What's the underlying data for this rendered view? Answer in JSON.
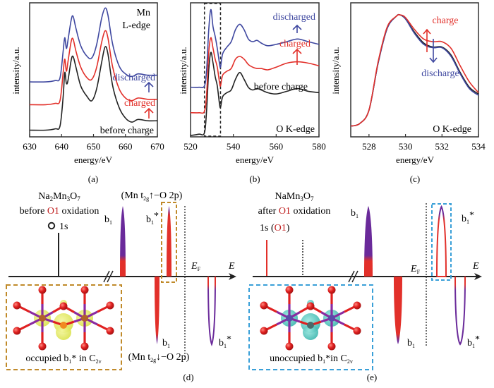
{
  "colors": {
    "black": "#222222",
    "red": "#e2302a",
    "blue": "#3f48a0",
    "purple": "#6a2a9a",
    "gold": "#c08a2a",
    "cyan": "#3aa0d8",
    "yellow_orbital": "#e2ea5a",
    "teal_orbital": "#48c8c0",
    "mn_atom": "#8a2aa0",
    "o_atom": "#e02020"
  },
  "chart_data": [
    {
      "id": "a",
      "type": "line",
      "panel_label": "(a)",
      "title": "Mn L-edge",
      "annotation_lines": [
        "Mn",
        "L-edge"
      ],
      "xlabel": "energy/eV",
      "ylabel": "intensity/a.u.",
      "xlim": [
        630,
        670
      ],
      "ylim": [
        0,
        1
      ],
      "xticks": [
        630,
        640,
        650,
        660,
        670
      ],
      "grid": false,
      "series": [
        {
          "name": "before charge",
          "color": "#222222",
          "x": [
            630,
            635,
            638,
            639.5,
            640.5,
            641,
            641.5,
            642,
            643,
            643.6,
            644.5,
            646,
            648,
            649.5,
            651,
            652.5,
            653.6,
            654.5,
            656,
            658,
            660,
            662,
            664,
            667,
            670
          ],
          "y": [
            0.05,
            0.05,
            0.06,
            0.08,
            0.3,
            0.48,
            0.4,
            0.42,
            0.57,
            0.6,
            0.52,
            0.38,
            0.3,
            0.27,
            0.36,
            0.55,
            0.67,
            0.62,
            0.38,
            0.22,
            0.14,
            0.11,
            0.13,
            0.12,
            0.12
          ]
        },
        {
          "name": "charged",
          "color": "#e2302a",
          "x": [
            630,
            635,
            638,
            639.5,
            640.5,
            641,
            641.5,
            642,
            643,
            643.6,
            644.5,
            646,
            648,
            649.5,
            651,
            652.5,
            653.6,
            654.5,
            656,
            658,
            660,
            662,
            664,
            667,
            670
          ],
          "y": [
            0.24,
            0.24,
            0.25,
            0.27,
            0.48,
            0.58,
            0.49,
            0.56,
            0.71,
            0.73,
            0.64,
            0.52,
            0.44,
            0.43,
            0.52,
            0.7,
            0.79,
            0.74,
            0.52,
            0.36,
            0.29,
            0.27,
            0.29,
            0.28,
            0.28
          ]
        },
        {
          "name": "discharged",
          "color": "#3f48a0",
          "x": [
            630,
            635,
            638,
            639.5,
            640.5,
            641,
            641.5,
            642,
            643,
            643.6,
            644.5,
            646,
            648,
            649.5,
            651,
            652.5,
            653.6,
            654.5,
            656,
            658,
            660,
            662,
            664,
            667,
            670
          ],
          "y": [
            0.41,
            0.41,
            0.42,
            0.44,
            0.64,
            0.74,
            0.66,
            0.72,
            0.87,
            0.9,
            0.81,
            0.68,
            0.6,
            0.59,
            0.69,
            0.88,
            0.96,
            0.91,
            0.69,
            0.53,
            0.47,
            0.45,
            0.47,
            0.46,
            0.46
          ]
        }
      ],
      "labels": [
        {
          "text": "discharged",
          "color": "#3f48a0"
        },
        {
          "text": "charged",
          "color": "#e2302a"
        },
        {
          "text": "before charge",
          "color": "#222222"
        }
      ]
    },
    {
      "id": "b",
      "type": "line",
      "panel_label": "(b)",
      "title": "O K-edge",
      "xlabel": "energy/eV",
      "ylabel": "intensity/a.u.",
      "xlim": [
        520,
        580
      ],
      "ylim": [
        0,
        1
      ],
      "xticks": [
        520,
        540,
        560,
        580
      ],
      "grid": false,
      "highlight_range": [
        526.5,
        534
      ],
      "series": [
        {
          "name": "before charge",
          "color": "#222222",
          "x": [
            520,
            524,
            526.5,
            527.5,
            528.5,
            529.5,
            530.5,
            531.5,
            532.5,
            533.5,
            534,
            535,
            537,
            539,
            541,
            543,
            545,
            547,
            549,
            551,
            553,
            556,
            560,
            565,
            570,
            575,
            580
          ],
          "y": [
            0.01,
            0.02,
            0.03,
            0.2,
            0.5,
            0.63,
            0.55,
            0.45,
            0.38,
            0.25,
            0.22,
            0.3,
            0.33,
            0.35,
            0.43,
            0.48,
            0.43,
            0.37,
            0.35,
            0.36,
            0.35,
            0.33,
            0.32,
            0.34,
            0.36,
            0.34,
            0.33
          ]
        },
        {
          "name": "charged",
          "color": "#e2302a",
          "x": [
            520,
            524,
            526.5,
            527.5,
            528.5,
            529.5,
            530.5,
            531.5,
            532.5,
            533.5,
            534,
            535,
            537,
            539,
            541,
            543,
            545,
            547,
            549,
            551,
            553,
            556,
            560,
            565,
            570,
            575,
            580
          ],
          "y": [
            0.18,
            0.18,
            0.19,
            0.32,
            0.63,
            0.74,
            0.66,
            0.58,
            0.52,
            0.41,
            0.38,
            0.46,
            0.49,
            0.51,
            0.58,
            0.6,
            0.58,
            0.54,
            0.52,
            0.51,
            0.51,
            0.5,
            0.52,
            0.55,
            0.56,
            0.55,
            0.53
          ]
        },
        {
          "name": "discharged",
          "color": "#3f48a0",
          "x": [
            520,
            524,
            526.5,
            527.5,
            528.5,
            529.5,
            530.5,
            531.5,
            532.5,
            533.5,
            534,
            535,
            537,
            539,
            541,
            543,
            545,
            547,
            549,
            551,
            553,
            556,
            560,
            565,
            570,
            575,
            580
          ],
          "y": [
            0.37,
            0.37,
            0.38,
            0.5,
            0.8,
            0.95,
            0.82,
            0.75,
            0.66,
            0.55,
            0.52,
            0.62,
            0.67,
            0.71,
            0.8,
            0.84,
            0.8,
            0.73,
            0.71,
            0.72,
            0.7,
            0.68,
            0.69,
            0.71,
            0.73,
            0.71,
            0.69
          ]
        }
      ],
      "labels": [
        {
          "text": "discharged",
          "color": "#3f48a0"
        },
        {
          "text": "charged",
          "color": "#e2302a"
        },
        {
          "text": "before charge",
          "color": "#222222"
        }
      ]
    },
    {
      "id": "c",
      "type": "line",
      "panel_label": "(c)",
      "title": "O K-edge",
      "xlabel": "energy/eV",
      "ylabel": "intensity/a.u.",
      "xlim": [
        527,
        534
      ],
      "ylim": [
        0,
        1
      ],
      "xticks": [
        528,
        530,
        532,
        534
      ],
      "grid": false,
      "series": [
        {
          "name": "before charge",
          "color": "#222222",
          "x": [
            527,
            527.5,
            528,
            528.5,
            529,
            529.5,
            529.7,
            530,
            530.5,
            531,
            531.5,
            532,
            532.5,
            533,
            533.5,
            534
          ],
          "y": [
            0.08,
            0.1,
            0.2,
            0.55,
            0.81,
            0.9,
            0.91,
            0.88,
            0.78,
            0.7,
            0.67,
            0.67,
            0.61,
            0.48,
            0.37,
            0.32
          ]
        },
        {
          "name": "discharged",
          "color": "#3f48a0",
          "x": [
            527,
            527.5,
            528,
            528.5,
            529,
            529.5,
            529.7,
            530,
            530.5,
            531,
            531.5,
            532,
            532.5,
            533,
            533.5,
            534
          ],
          "y": [
            0.08,
            0.1,
            0.2,
            0.55,
            0.81,
            0.9,
            0.91,
            0.88,
            0.77,
            0.69,
            0.665,
            0.665,
            0.6,
            0.47,
            0.36,
            0.31
          ]
        },
        {
          "name": "charged",
          "color": "#e2302a",
          "x": [
            527,
            527.5,
            528,
            528.5,
            529,
            529.5,
            529.7,
            530,
            530.5,
            531,
            531.5,
            532,
            532.5,
            533,
            533.5,
            534
          ],
          "y": [
            0.08,
            0.1,
            0.2,
            0.56,
            0.82,
            0.9,
            0.91,
            0.89,
            0.8,
            0.73,
            0.71,
            0.71,
            0.66,
            0.53,
            0.41,
            0.33
          ]
        }
      ],
      "labels": [
        {
          "text": "charge",
          "color": "#e2302a"
        },
        {
          "text": "discharge",
          "color": "#3f48a0"
        }
      ]
    }
  ],
  "diagrams": {
    "d": {
      "panel_label": "(d)",
      "compound_prefix": "Na",
      "compound": "Na2Mn3O7",
      "compound_parts": [
        "Na",
        "2",
        "Mn",
        "3",
        "O",
        "7"
      ],
      "subtitle_pre": "before ",
      "subtitle_red": "O1",
      "subtitle_post": " oxidation",
      "core_label": "1s",
      "core_marker": "O",
      "spin_up_label": "(Mn t",
      "spin_up_sub": "2g",
      "spin_up_rest": "↑−O 2p)",
      "spin_down_label": "(Mn t",
      "spin_down_sub": "2g",
      "spin_down_rest": "↓−O 2p)",
      "bands": [
        {
          "name": "b1",
          "label": "b",
          "sub": "1",
          "star": "",
          "spin": "up"
        },
        {
          "name": "b1*",
          "label": "b",
          "sub": "1",
          "star": "*",
          "spin": "up"
        },
        {
          "name": "b1",
          "label": "b",
          "sub": "1",
          "star": "",
          "spin": "down"
        },
        {
          "name": "b1*",
          "label": "b",
          "sub": "1",
          "star": "*",
          "spin": "down"
        }
      ],
      "fermi_label": "E",
      "fermi_sub": "F",
      "axis_label": "E",
      "inset_caption_pre": "occupied b",
      "inset_caption_sub": "1",
      "inset_caption_mid": "* in C",
      "inset_caption_sub2": "2v"
    },
    "e": {
      "panel_label": "(e)",
      "compound": "NaMn3O7",
      "compound_parts": [
        "NaMn",
        "3",
        "O",
        "7"
      ],
      "subtitle_pre": "after ",
      "subtitle_red": "O1",
      "subtitle_post": " oxidation",
      "core_label_pre": "1s (",
      "core_label_red": "O1",
      "core_label_post": ")",
      "bands": [
        {
          "name": "b1",
          "label": "b",
          "sub": "1",
          "star": "",
          "spin": "up"
        },
        {
          "name": "b1*",
          "label": "b",
          "sub": "1",
          "star": "*",
          "spin": "up"
        },
        {
          "name": "b1",
          "label": "b",
          "sub": "1",
          "star": "",
          "spin": "down"
        },
        {
          "name": "b1*",
          "label": "b",
          "sub": "1",
          "star": "*",
          "spin": "down"
        }
      ],
      "fermi_label": "E",
      "fermi_sub": "F",
      "axis_label": "E",
      "inset_caption_pre": "unoccupied b",
      "inset_caption_sub": "1",
      "inset_caption_mid": "*in C",
      "inset_caption_sub2": "2v"
    }
  }
}
